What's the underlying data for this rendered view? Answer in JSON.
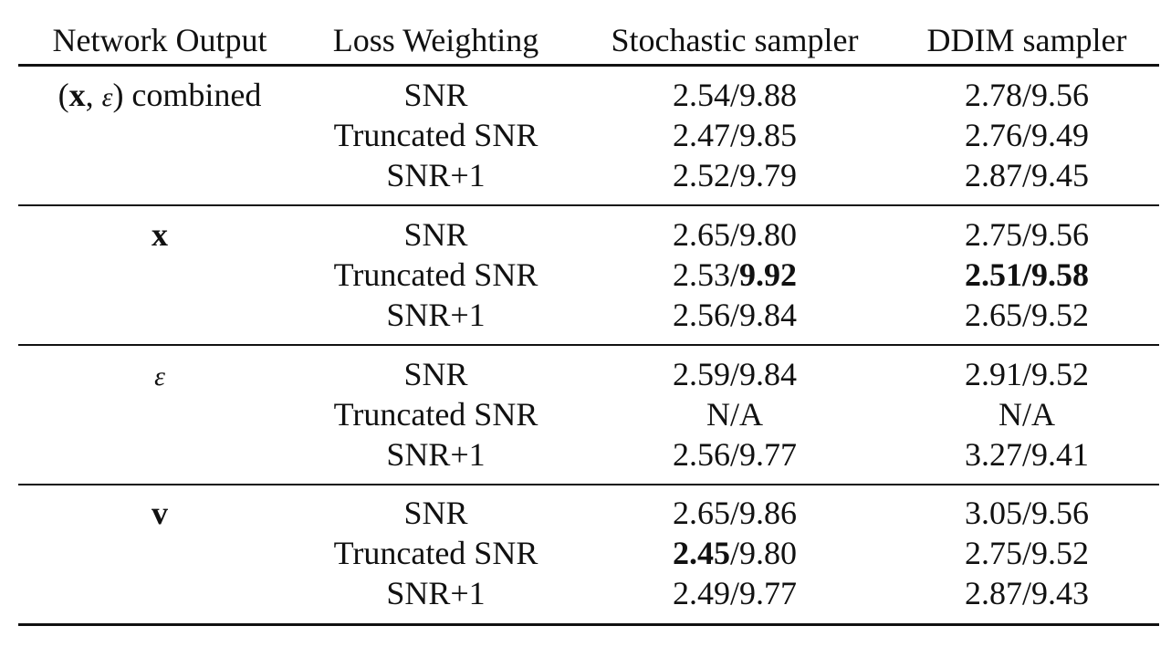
{
  "headers": {
    "network_output": "Network Output",
    "loss_weighting": "Loss Weighting",
    "stochastic": "Stochastic sampler",
    "ddim": "DDIM sampler"
  },
  "groups": [
    {
      "output": {
        "pre": "(",
        "bold": "x",
        "sep": ", ",
        "italic": "ε",
        "post": ") combined"
      },
      "rows": [
        {
          "loss": "SNR",
          "stoch": {
            "a": "2.54",
            "b": "9.88"
          },
          "ddim": {
            "a": "2.78",
            "b": "9.56"
          }
        },
        {
          "loss": "Truncated SNR",
          "stoch": {
            "a": "2.47",
            "b": "9.85"
          },
          "ddim": {
            "a": "2.76",
            "b": "9.49"
          }
        },
        {
          "loss": "SNR+1",
          "stoch": {
            "a": "2.52",
            "b": "9.79"
          },
          "ddim": {
            "a": "2.87",
            "b": "9.45"
          }
        }
      ]
    },
    {
      "output": {
        "pre": "",
        "bold": "x",
        "sep": "",
        "italic": "",
        "post": ""
      },
      "rows": [
        {
          "loss": "SNR",
          "stoch": {
            "a": "2.65",
            "b": "9.80"
          },
          "ddim": {
            "a": "2.75",
            "b": "9.56"
          }
        },
        {
          "loss": "Truncated SNR",
          "stoch": {
            "a": "2.53",
            "b": "9.92",
            "bold_b": true
          },
          "ddim": {
            "a": "2.51",
            "b": "9.58",
            "bold_a": true,
            "bold_b": true
          }
        },
        {
          "loss": "SNR+1",
          "stoch": {
            "a": "2.56",
            "b": "9.84"
          },
          "ddim": {
            "a": "2.65",
            "b": "9.52"
          }
        }
      ]
    },
    {
      "output": {
        "pre": "",
        "bold": "",
        "sep": "",
        "italic": "ε",
        "post": ""
      },
      "rows": [
        {
          "loss": "SNR",
          "stoch": {
            "a": "2.59",
            "b": "9.84"
          },
          "ddim": {
            "a": "2.91",
            "b": "9.52"
          }
        },
        {
          "loss": "Truncated SNR",
          "stoch": {
            "na": "N/A"
          },
          "ddim": {
            "na": "N/A"
          }
        },
        {
          "loss": "SNR+1",
          "stoch": {
            "a": "2.56",
            "b": "9.77"
          },
          "ddim": {
            "a": "3.27",
            "b": "9.41"
          }
        }
      ]
    },
    {
      "output": {
        "pre": "",
        "bold": "v",
        "sep": "",
        "italic": "",
        "post": ""
      },
      "rows": [
        {
          "loss": "SNR",
          "stoch": {
            "a": "2.65",
            "b": "9.86"
          },
          "ddim": {
            "a": "3.05",
            "b": "9.56"
          }
        },
        {
          "loss": "Truncated SNR",
          "stoch": {
            "a": "2.45",
            "b": "9.80",
            "bold_a": true
          },
          "ddim": {
            "a": "2.75",
            "b": "9.52"
          }
        },
        {
          "loss": "SNR+1",
          "stoch": {
            "a": "2.49",
            "b": "9.77"
          },
          "ddim": {
            "a": "2.87",
            "b": "9.43"
          }
        }
      ]
    }
  ]
}
